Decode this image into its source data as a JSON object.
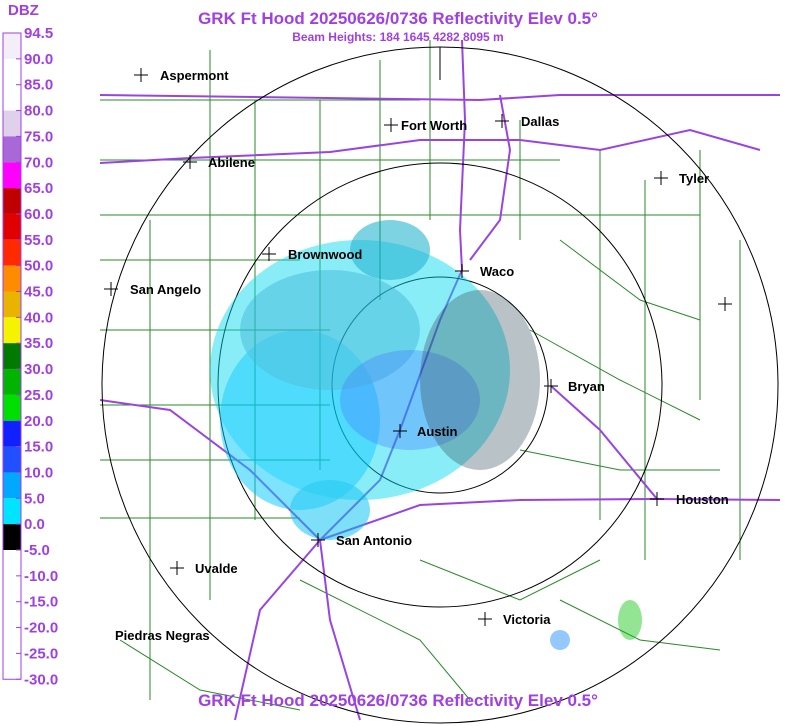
{
  "header": {
    "title": "GRK Ft Hood 20250626/0736 Reflectivity Elev 0.5°",
    "subtitle": "Beam Heights: 184 1645 4282 8095 m"
  },
  "footer": {
    "title": "GRK Ft Hood 20250626/0736 Reflectivity Elev 0.5°"
  },
  "colorbar": {
    "unit": "DBZ",
    "labels": [
      "94.5",
      "90.0",
      "85.0",
      "80.0",
      "75.0",
      "70.0",
      "65.0",
      "60.0",
      "55.0",
      "50.0",
      "45.0",
      "40.0",
      "35.0",
      "30.0",
      "25.0",
      "20.0",
      "15.0",
      "10.0",
      "5.0",
      "0.0",
      "-5.0",
      "-10.0",
      "-15.0",
      "-20.0",
      "-25.0",
      "-30.0"
    ],
    "colors": [
      "#f4eef8",
      "#ffffff",
      "#ffffff",
      "#e0d0ec",
      "#a868d8",
      "#ff00ff",
      "#c00000",
      "#e00000",
      "#ff2a00",
      "#ff8c00",
      "#e8b400",
      "#f4f400",
      "#007a00",
      "#00b400",
      "#00e000",
      "#1020ff",
      "#2050ff",
      "#00a8ff",
      "#00e4ff",
      "#000000",
      "#ffffff",
      "#ffffff",
      "#ffffff",
      "#ffffff",
      "#ffffff"
    ]
  },
  "cities": [
    "Aspermont",
    "Abilene",
    "Fort Worth",
    "Dallas",
    "Tyler",
    "Brownwood",
    "Waco",
    "San Angelo",
    "Bryan",
    "Austin",
    "Houston",
    "San Antonio",
    "Uvalde",
    "Victoria",
    "Piedras Negras"
  ]
}
